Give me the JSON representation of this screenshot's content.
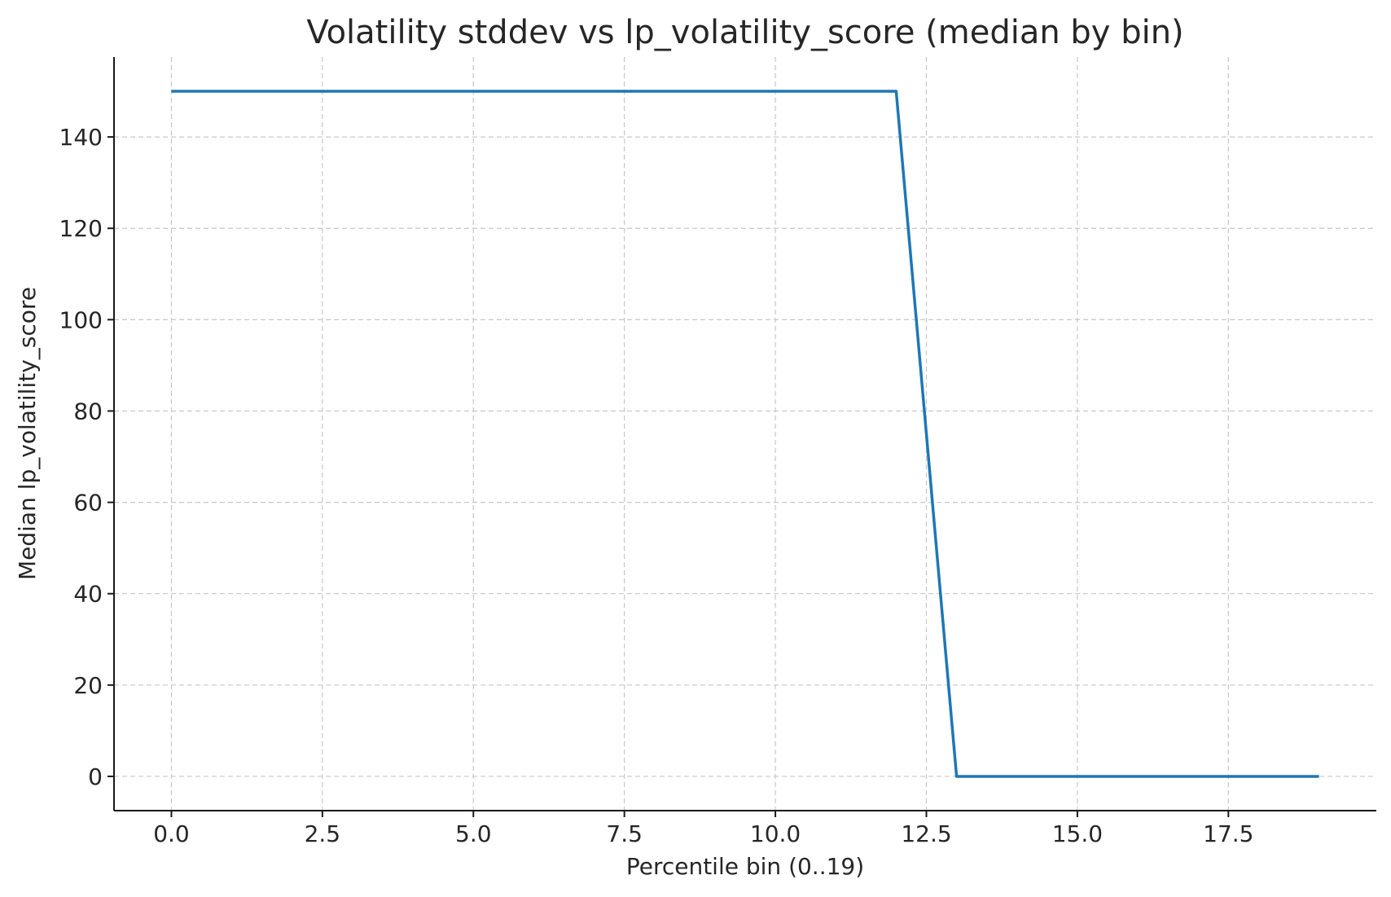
{
  "chart_data": {
    "type": "line",
    "title": "Volatility stddev vs lp_volatility_score (median by bin)",
    "xlabel": "Percentile bin (0..19)",
    "ylabel": "Median lp_volatility_score",
    "xlim": [
      -0.95,
      19.95
    ],
    "ylim": [
      -7.5,
      157.5
    ],
    "x_ticks": [
      0.0,
      2.5,
      5.0,
      7.5,
      10.0,
      12.5,
      15.0,
      17.5
    ],
    "x_tick_labels": [
      "0.0",
      "2.5",
      "5.0",
      "7.5",
      "10.0",
      "12.5",
      "15.0",
      "17.5"
    ],
    "y_ticks": [
      0,
      20,
      40,
      60,
      80,
      100,
      120,
      140
    ],
    "y_tick_labels": [
      "0",
      "20",
      "40",
      "60",
      "80",
      "100",
      "120",
      "140"
    ],
    "grid": true,
    "series": [
      {
        "color": "#1f77b4",
        "x": [
          0,
          1,
          2,
          3,
          4,
          5,
          6,
          7,
          8,
          9,
          10,
          11,
          12,
          13,
          14,
          15,
          16,
          17,
          18,
          19
        ],
        "y": [
          150,
          150,
          150,
          150,
          150,
          150,
          150,
          150,
          150,
          150,
          150,
          150,
          150,
          0,
          0,
          0,
          0,
          0,
          0,
          0
        ]
      }
    ]
  }
}
